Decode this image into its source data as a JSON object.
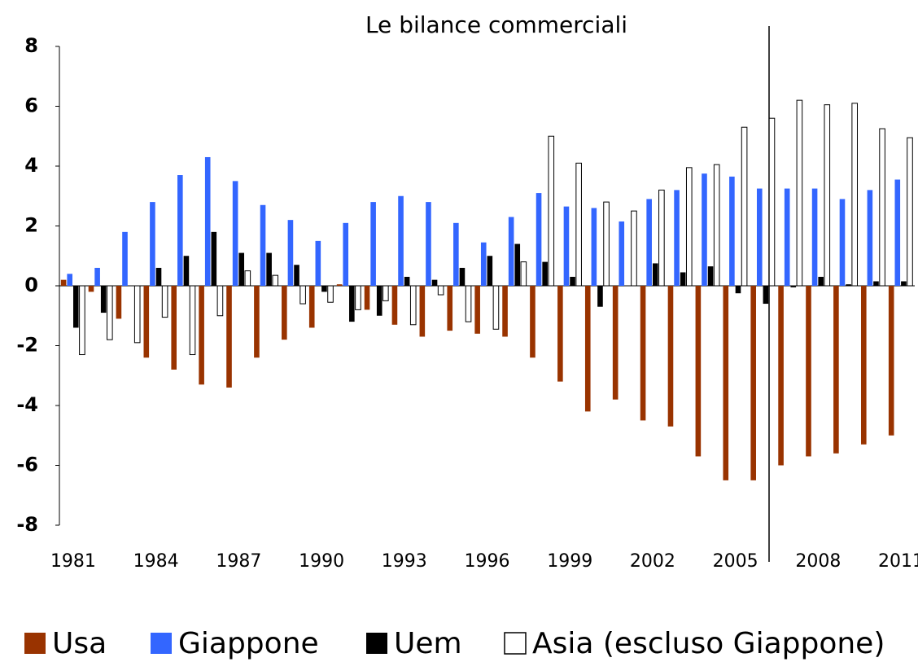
{
  "chart_data": {
    "type": "bar",
    "title": "Le bilance commerciali",
    "categories": [
      "1981",
      null,
      null,
      "1984",
      null,
      null,
      "1987",
      null,
      null,
      "1990",
      null,
      null,
      "1993",
      null,
      null,
      "1996",
      null,
      null,
      "1999",
      null,
      null,
      "2002",
      null,
      null,
      "2005",
      null,
      null,
      "2008",
      null,
      null,
      "2011"
    ],
    "series": [
      {
        "name": "Usa",
        "color": "#993300",
        "values": [
          0.2,
          -0.2,
          -1.1,
          -2.4,
          -2.8,
          -3.3,
          -3.4,
          -2.4,
          -1.8,
          -1.4,
          0.05,
          -0.8,
          -1.3,
          -1.7,
          -1.5,
          -1.6,
          -1.7,
          -2.4,
          -3.2,
          -4.2,
          -3.8,
          -4.5,
          -4.7,
          -5.7,
          -6.5,
          -6.5,
          -6.0,
          -5.7,
          -5.6,
          -5.3,
          -5.0
        ]
      },
      {
        "name": "Giappone",
        "color": "#3366ff",
        "values": [
          0.4,
          0.6,
          1.8,
          2.8,
          3.7,
          4.3,
          3.5,
          2.7,
          2.2,
          1.5,
          2.1,
          2.8,
          3.0,
          2.8,
          2.1,
          1.45,
          2.3,
          3.1,
          2.65,
          2.6,
          2.15,
          2.9,
          3.2,
          3.75,
          3.65,
          3.25,
          3.25,
          3.25,
          2.9,
          3.2,
          3.55
        ]
      },
      {
        "name": "Uem",
        "color": "#000000",
        "values": [
          -1.4,
          -0.9,
          0,
          0.6,
          1.0,
          1.8,
          1.1,
          1.1,
          0.7,
          -0.2,
          -1.2,
          -1.0,
          0.3,
          0.2,
          0.6,
          1.0,
          1.4,
          0.8,
          0.3,
          -0.7,
          0,
          0.75,
          0.45,
          0.65,
          -0.25,
          -0.6,
          -0.05,
          0.3,
          0.05,
          0.15,
          0.15
        ]
      },
      {
        "name": "Asia (escluso Giappone)",
        "color": "#ffffff",
        "values": [
          -2.3,
          -1.8,
          -1.9,
          -1.05,
          -2.3,
          -1.0,
          0.5,
          0.35,
          -0.6,
          -0.55,
          -0.8,
          -0.5,
          -1.3,
          -0.3,
          -1.2,
          -1.45,
          0.8,
          5.0,
          4.1,
          2.8,
          2.5,
          3.2,
          3.95,
          4.05,
          5.3,
          5.6,
          6.2,
          6.05,
          6.1,
          5.25,
          4.95
        ]
      }
    ],
    "ylim": [
      -8,
      8
    ],
    "yticks": [
      -8,
      -6,
      -4,
      -2,
      0,
      2,
      4,
      6,
      8
    ]
  }
}
